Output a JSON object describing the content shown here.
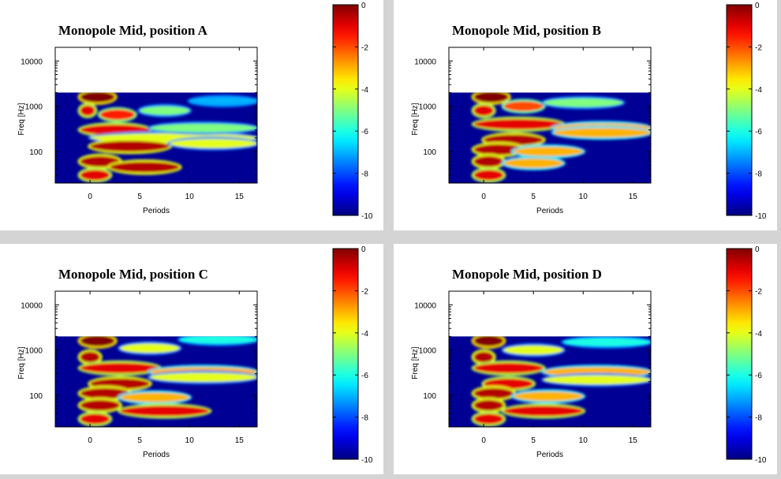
{
  "chart_data": [
    {
      "type": "heatmap",
      "title": "Monopole Mid, position A",
      "xlabel": "Periods",
      "ylabel": "Freq [Hz]",
      "xlim": [
        -3.5,
        16.8
      ],
      "ylim": [
        20,
        20000
      ],
      "yscale": "log",
      "data_ylim": [
        20,
        2000
      ],
      "xticks": [
        0,
        5,
        10,
        15
      ],
      "yticks": [
        100,
        1000,
        10000
      ],
      "colorbar": {
        "min": -10,
        "max": 0,
        "ticks": [
          0,
          -2,
          -4,
          -6,
          -8,
          -10
        ],
        "colormap": "jet"
      },
      "blobs": [
        {
          "x": [
            -1,
            2.5
          ],
          "y": 1600,
          "level": 0
        },
        {
          "x": [
            -1,
            0.5
          ],
          "y": 800,
          "level": -1
        },
        {
          "x": [
            1,
            4.5
          ],
          "y": 650,
          "level": -1.5
        },
        {
          "x": [
            5,
            10
          ],
          "y": 800,
          "level": -5
        },
        {
          "x": [
            10,
            16.8
          ],
          "y": 1300,
          "level": -7
        },
        {
          "x": [
            -1,
            6
          ],
          "y": 300,
          "level": -1
        },
        {
          "x": [
            0,
            16.8
          ],
          "y": 200,
          "level": -4
        },
        {
          "x": [
            6,
            16.8
          ],
          "y": 330,
          "level": -5
        },
        {
          "x": [
            0,
            8
          ],
          "y": 130,
          "level": -0.5
        },
        {
          "x": [
            8,
            16.8
          ],
          "y": 150,
          "level": -4
        },
        {
          "x": [
            -1,
            3
          ],
          "y": 60,
          "level": -0.5
        },
        {
          "x": [
            2,
            9
          ],
          "y": 45,
          "level": -0.5
        },
        {
          "x": [
            -1,
            2
          ],
          "y": 30,
          "level": -1
        }
      ]
    },
    {
      "type": "heatmap",
      "title": "Monopole Mid, position B",
      "xlabel": "Periods",
      "ylabel": "Freq [Hz]",
      "xlim": [
        -3.5,
        16.8
      ],
      "ylim": [
        20,
        20000
      ],
      "yscale": "log",
      "data_ylim": [
        20,
        2000
      ],
      "xticks": [
        0,
        5,
        10,
        15
      ],
      "yticks": [
        100,
        1000,
        10000
      ],
      "colorbar": {
        "min": -10,
        "max": 0,
        "ticks": [
          0,
          -2,
          -4,
          -6,
          -8,
          -10
        ],
        "colormap": "jet"
      },
      "blobs": [
        {
          "x": [
            -1,
            2.5
          ],
          "y": 1600,
          "level": 0
        },
        {
          "x": [
            -1,
            1
          ],
          "y": 800,
          "level": -1
        },
        {
          "x": [
            2,
            6
          ],
          "y": 1000,
          "level": -2
        },
        {
          "x": [
            6,
            14
          ],
          "y": 1200,
          "level": -5
        },
        {
          "x": [
            -1,
            8
          ],
          "y": 400,
          "level": -1
        },
        {
          "x": [
            7,
            16.8
          ],
          "y": 330,
          "level": -3
        },
        {
          "x": [
            7,
            16.8
          ],
          "y": 260,
          "level": -3
        },
        {
          "x": [
            0,
            6
          ],
          "y": 180,
          "level": -0.5
        },
        {
          "x": [
            -1,
            4
          ],
          "y": 110,
          "level": -0.5
        },
        {
          "x": [
            3,
            10
          ],
          "y": 100,
          "level": -3
        },
        {
          "x": [
            -1,
            2
          ],
          "y": 60,
          "level": -0.5
        },
        {
          "x": [
            2,
            8
          ],
          "y": 55,
          "level": -3
        },
        {
          "x": [
            -1,
            2
          ],
          "y": 30,
          "level": -1
        }
      ]
    },
    {
      "type": "heatmap",
      "title": "Monopole Mid, position C",
      "xlabel": "Periods",
      "ylabel": "Freq [Hz]",
      "xlim": [
        -3.5,
        16.8
      ],
      "ylim": [
        20,
        20000
      ],
      "yscale": "log",
      "data_ylim": [
        20,
        2000
      ],
      "xticks": [
        0,
        5,
        10,
        15
      ],
      "yticks": [
        100,
        1000,
        10000
      ],
      "colorbar": {
        "min": -10,
        "max": 0,
        "ticks": [
          0,
          -2,
          -4,
          -6,
          -8,
          -10
        ],
        "colormap": "jet"
      },
      "blobs": [
        {
          "x": [
            -1,
            2.5
          ],
          "y": 1600,
          "level": 0
        },
        {
          "x": [
            -1,
            1
          ],
          "y": 700,
          "level": -0.5
        },
        {
          "x": [
            3,
            9
          ],
          "y": 1100,
          "level": -4
        },
        {
          "x": [
            9,
            16.8
          ],
          "y": 1700,
          "level": -6
        },
        {
          "x": [
            -1,
            7
          ],
          "y": 400,
          "level": -1
        },
        {
          "x": [
            6,
            16.8
          ],
          "y": 330,
          "level": -3
        },
        {
          "x": [
            6,
            16.8
          ],
          "y": 250,
          "level": -4
        },
        {
          "x": [
            0,
            6
          ],
          "y": 180,
          "level": -0.5
        },
        {
          "x": [
            -1,
            4
          ],
          "y": 110,
          "level": -0.5
        },
        {
          "x": [
            3,
            10
          ],
          "y": 90,
          "level": -3
        },
        {
          "x": [
            -1,
            3
          ],
          "y": 60,
          "level": -0.5
        },
        {
          "x": [
            3,
            12
          ],
          "y": 45,
          "level": -1
        },
        {
          "x": [
            -1,
            2
          ],
          "y": 30,
          "level": -1
        }
      ]
    },
    {
      "type": "heatmap",
      "title": "Monopole Mid, position D",
      "xlabel": "Periods",
      "ylabel": "Freq [Hz]",
      "xlim": [
        -3.5,
        16.8
      ],
      "ylim": [
        20,
        20000
      ],
      "yscale": "log",
      "data_ylim": [
        20,
        2000
      ],
      "xticks": [
        0,
        5,
        10,
        15
      ],
      "yticks": [
        100,
        1000,
        10000
      ],
      "colorbar": {
        "min": -10,
        "max": 0,
        "ticks": [
          0,
          -2,
          -4,
          -6,
          -8,
          -10
        ],
        "colormap": "jet"
      },
      "blobs": [
        {
          "x": [
            -1,
            2
          ],
          "y": 1600,
          "level": 0
        },
        {
          "x": [
            -1,
            1
          ],
          "y": 700,
          "level": -0.5
        },
        {
          "x": [
            2,
            8
          ],
          "y": 1000,
          "level": -4
        },
        {
          "x": [
            8,
            16.8
          ],
          "y": 1500,
          "level": -6
        },
        {
          "x": [
            -1,
            6
          ],
          "y": 400,
          "level": -1
        },
        {
          "x": [
            6,
            16.8
          ],
          "y": 330,
          "level": -3
        },
        {
          "x": [
            6,
            16.8
          ],
          "y": 220,
          "level": -4
        },
        {
          "x": [
            0,
            5
          ],
          "y": 180,
          "level": -1
        },
        {
          "x": [
            -1,
            3
          ],
          "y": 110,
          "level": -0.5
        },
        {
          "x": [
            3,
            10
          ],
          "y": 95,
          "level": -3
        },
        {
          "x": [
            -1,
            2
          ],
          "y": 60,
          "level": -0.5
        },
        {
          "x": [
            2,
            10
          ],
          "y": 45,
          "level": -1
        },
        {
          "x": [
            -1,
            2
          ],
          "y": 30,
          "level": -1
        }
      ]
    }
  ]
}
